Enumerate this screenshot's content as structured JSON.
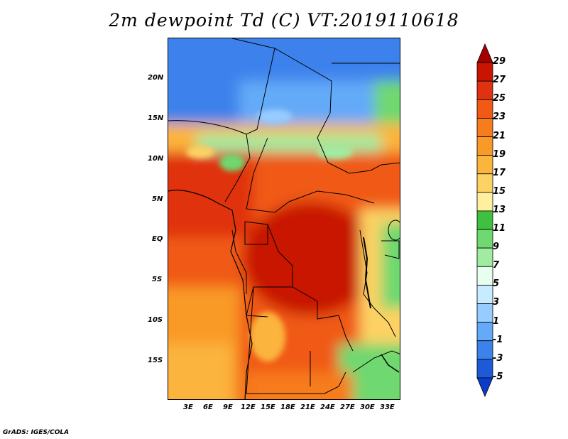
{
  "title": "2m dewpoint Td (C) VT:2019110618",
  "credit": "GrADS: IGES/COLA",
  "map": {
    "lon_labels": [
      "3E",
      "6E",
      "9E",
      "12E",
      "15E",
      "18E",
      "21E",
      "24E",
      "27E",
      "30E",
      "33E"
    ],
    "lat_labels": [
      "20N",
      "15N",
      "10N",
      "5N",
      "EQ",
      "5S",
      "10S",
      "15S"
    ],
    "region": "Central Africa",
    "lon_range": [
      0,
      35
    ],
    "lat_range": [
      -20,
      25
    ]
  },
  "colorbar": {
    "labels": [
      "29",
      "27",
      "25",
      "23",
      "21",
      "19",
      "17",
      "15",
      "13",
      "11",
      "9",
      "7",
      "5",
      "3",
      "1",
      "-1",
      "-3",
      "-5"
    ],
    "colors": [
      "#a50000",
      "#c81400",
      "#e03210",
      "#f05a14",
      "#f77c1e",
      "#f99a28",
      "#fbb43c",
      "#fdd264",
      "#fff0a0",
      "#40c040",
      "#70d870",
      "#a0eca0",
      "#e8fff0",
      "#c8ecff",
      "#96ccff",
      "#64aaf8",
      "#3c82ec",
      "#1e5ad8",
      "#0a3cc8"
    ]
  }
}
